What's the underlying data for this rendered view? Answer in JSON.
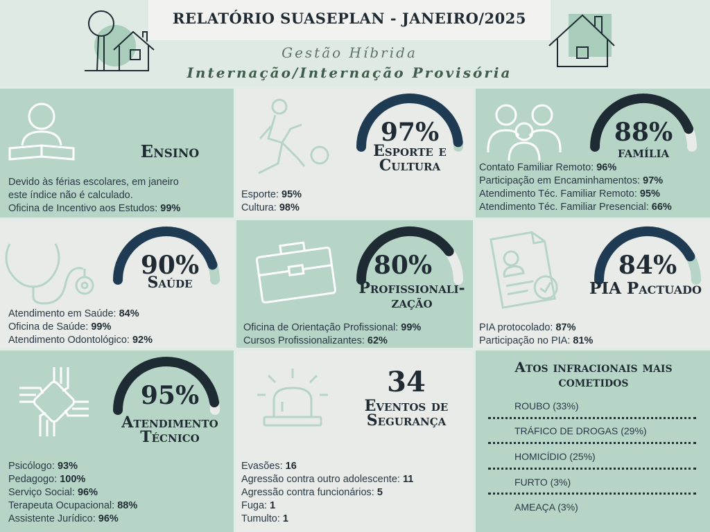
{
  "header": {
    "title": "RELATÓRIO SUASEPLAN - JANEIRO/2025",
    "subtitle": "Gestão Híbrida",
    "subtitle2": "Internação/Internação Provisória"
  },
  "colors": {
    "dark": "#1f3b53",
    "light_arc": "#b6d5c6",
    "green": "#b6d5c6",
    "gray": "#e9ebe8"
  },
  "ensino": {
    "label": "Ensino",
    "lines": [
      {
        "text": "Devido às férias escolares, em janeiro",
        "value": ""
      },
      {
        "text": "este índice não é calculado.",
        "value": ""
      },
      {
        "text": "Oficina de Incentivo aos Estudos: ",
        "value": "99%"
      }
    ]
  },
  "esporte": {
    "percent": "97%",
    "value": 0.97,
    "label_1": "Esporte e",
    "label_2": "Cultura",
    "lines": [
      {
        "text": "Esporte: ",
        "value": "95%"
      },
      {
        "text": "Cultura: ",
        "value": "98%"
      }
    ]
  },
  "familia": {
    "percent": "88%",
    "value": 0.88,
    "label": "família",
    "lines": [
      {
        "text": "Contato Familiar Remoto: ",
        "value": "96%"
      },
      {
        "text": "Participação em Encaminhamentos: ",
        "value": "97%"
      },
      {
        "text": "Atendimento Téc. Familiar Remoto: ",
        "value": "95%"
      },
      {
        "text": "Atendimento Téc. Familiar Presencial: ",
        "value": "66%"
      }
    ]
  },
  "saude": {
    "percent": "90%",
    "value": 0.9,
    "label": "Saúde",
    "lines": [
      {
        "text": "Atendimento em Saúde: ",
        "value": "84%"
      },
      {
        "text": "Oficina de Saúde: ",
        "value": "99%"
      },
      {
        "text": "Atendimento Odontológico: ",
        "value": "92%"
      }
    ]
  },
  "profissionalizacao": {
    "percent": "80%",
    "value": 0.8,
    "label_1": "Profissionali-",
    "label_2": "zação",
    "lines": [
      {
        "text": "Oficina de Orientação Profissional: ",
        "value": "99%"
      },
      {
        "text": "Cursos Profissionalizantes: ",
        "value": "62%"
      }
    ]
  },
  "pia": {
    "percent": "84%",
    "value": 0.84,
    "label": "PIA Pactuado",
    "lines": [
      {
        "text": "PIA protocolado: ",
        "value": "87%"
      },
      {
        "text": "Participação no PIA: ",
        "value": "81%"
      }
    ]
  },
  "atendimento": {
    "percent": "95%",
    "value": 0.95,
    "label_1": "Atendimento",
    "label_2": "Técnico",
    "lines": [
      {
        "text": "Psicólogo: ",
        "value": "93%"
      },
      {
        "text": "Pedagogo: ",
        "value": "100%"
      },
      {
        "text": "Serviço Social: ",
        "value": "96%"
      },
      {
        "text": "Terapeuta Ocupacional: ",
        "value": "88%"
      },
      {
        "text": "Assistente Jurídico: ",
        "value": "96%"
      }
    ]
  },
  "seguranca": {
    "count": "34",
    "label_1": "Eventos de",
    "label_2": "Segurança",
    "lines": [
      {
        "text": "Evasões: ",
        "value": "16"
      },
      {
        "text": "Agressão contra outro adolescente: ",
        "value": "11"
      },
      {
        "text": "Agressão contra funcionários: ",
        "value": "5"
      },
      {
        "text": "Fuga: ",
        "value": "1"
      },
      {
        "text": "Tumulto: ",
        "value": "1"
      }
    ]
  },
  "atos": {
    "title_1": "Atos infracionais mais",
    "title_2": "cometidos",
    "items": [
      "ROUBO (33%)",
      "TRÁFICO DE DROGAS  (29%)",
      "HOMICÍDIO (25%)",
      "FURTO (3%)",
      "AMEAÇA (3%)"
    ]
  }
}
